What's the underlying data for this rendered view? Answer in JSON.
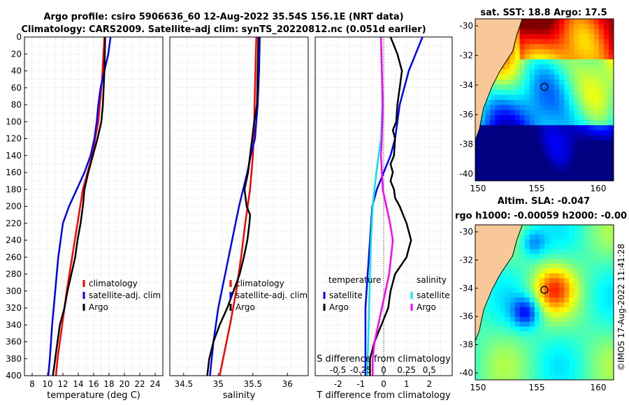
{
  "title": {
    "line1": "Argo profile: csiro 5906636_60 12-Aug-2022 35.54S 156.1E (NRT data)",
    "line2": "Climatology: CARS2009. Satellite-adj clim: synTS_20220812.nc (0.051d earlier)"
  },
  "colors": {
    "climatology": "#ff0000",
    "satellite": "#0000ff",
    "argo": "#000000",
    "sal_satellite": "#00e5ee",
    "sal_argo": "#ff00ff",
    "land": "#f8c898"
  },
  "chart_data": [
    {
      "id": "temperature",
      "type": "line",
      "xlabel": "temperature (deg C)",
      "ylabel": "",
      "xlim": [
        7,
        25
      ],
      "ylim": [
        400,
        0
      ],
      "xticks": [
        "8",
        "10",
        "12",
        "14",
        "16",
        "18",
        "20",
        "22",
        "24"
      ],
      "yticks": [
        "0",
        "20",
        "40",
        "60",
        "80",
        "100",
        "120",
        "140",
        "160",
        "180",
        "200",
        "220",
        "240",
        "260",
        "280",
        "300",
        "320",
        "340",
        "360",
        "380",
        "400"
      ],
      "legend": [
        "climatology",
        "satellite-adj. clim",
        "Argo"
      ],
      "series": [
        {
          "name": "climatology",
          "depth": [
            0,
            50,
            100,
            140,
            180,
            220,
            260,
            300,
            340,
            380,
            400
          ],
          "values": [
            17.4,
            17.1,
            16.6,
            15.8,
            14.6,
            13.9,
            13.2,
            12.5,
            11.9,
            11.3,
            11.1
          ]
        },
        {
          "name": "satellite-adj. clim",
          "depth": [
            0,
            20,
            40,
            60,
            80,
            100,
            120,
            140,
            160,
            180,
            200,
            220,
            260,
            300,
            340,
            380,
            400
          ],
          "values": [
            18.2,
            17.9,
            17.4,
            16.9,
            16.6,
            16.4,
            16.1,
            15.6,
            14.8,
            13.8,
            12.8,
            12.0,
            11.4,
            11.0,
            10.6,
            10.3,
            10.1
          ]
        },
        {
          "name": "Argo",
          "depth": [
            0,
            40,
            80,
            100,
            120,
            140,
            160,
            180,
            200,
            220,
            240,
            260,
            280,
            300,
            320,
            340,
            360,
            380,
            400
          ],
          "values": [
            17.5,
            17.4,
            17.2,
            17.0,
            16.5,
            15.9,
            15.3,
            14.8,
            14.6,
            14.3,
            13.9,
            13.6,
            13.1,
            12.6,
            12.2,
            11.6,
            11.3,
            11.0,
            10.7
          ]
        }
      ]
    },
    {
      "id": "salinity",
      "type": "line",
      "xlabel": "salinity",
      "ylabel": "",
      "xlim": [
        34.3,
        36.3
      ],
      "ylim": [
        400,
        0
      ],
      "xticks": [
        "34.5",
        "35",
        "35.5",
        "36"
      ],
      "legend": [
        "climatology",
        "satellite-adj. clim",
        "Argo"
      ],
      "series": [
        {
          "name": "climatology",
          "depth": [
            0,
            60,
            100,
            140,
            180,
            220,
            260,
            300,
            340,
            380,
            400
          ],
          "values": [
            35.55,
            35.53,
            35.52,
            35.5,
            35.46,
            35.39,
            35.33,
            35.26,
            35.17,
            35.07,
            35.02
          ]
        },
        {
          "name": "satellite-adj. clim",
          "depth": [
            0,
            40,
            80,
            120,
            140,
            160,
            180,
            200,
            240,
            280,
            320,
            360,
            400
          ],
          "values": [
            35.6,
            35.59,
            35.57,
            35.53,
            35.47,
            35.42,
            35.36,
            35.3,
            35.2,
            35.1,
            35.0,
            34.93,
            34.88
          ]
        },
        {
          "name": "Argo",
          "depth": [
            0,
            40,
            80,
            100,
            120,
            140,
            160,
            180,
            200,
            210,
            220,
            240,
            260,
            280,
            300,
            320,
            340,
            360,
            380,
            400
          ],
          "values": [
            35.58,
            35.57,
            35.56,
            35.52,
            35.49,
            35.46,
            35.43,
            35.38,
            35.41,
            35.46,
            35.45,
            35.42,
            35.37,
            35.31,
            35.22,
            35.13,
            35.02,
            34.93,
            34.87,
            34.84
          ]
        }
      ]
    },
    {
      "id": "difference",
      "type": "line",
      "xlabel": "T difference from climatology",
      "xlabel_top": "S difference from climatology",
      "xlim": [
        -3,
        3
      ],
      "ylim": [
        400,
        0
      ],
      "xticks": [
        "-2",
        "-1",
        "0",
        "1",
        "2"
      ],
      "xticks_top": [
        "-0.5",
        "-0.25",
        "0",
        "0.25",
        "0.5"
      ],
      "legend_left_title": "temperature",
      "legend_right_title": "salinity",
      "legend_left": [
        "satellite",
        "Argo"
      ],
      "legend_right": [
        "satellite",
        "Argo"
      ],
      "series": [
        {
          "name": "T satellite",
          "depth": [
            0,
            20,
            40,
            60,
            80,
            100,
            120,
            140,
            160,
            180,
            200,
            240,
            280,
            320,
            360,
            400
          ],
          "values": [
            1.7,
            1.4,
            1.1,
            0.9,
            0.7,
            0.6,
            0.5,
            0.3,
            0.0,
            -0.3,
            -0.5,
            -0.6,
            -0.7,
            -0.8,
            -0.8,
            -0.8
          ]
        },
        {
          "name": "T Argo",
          "depth": [
            0,
            20,
            40,
            60,
            80,
            100,
            110,
            120,
            140,
            150,
            160,
            170,
            180,
            190,
            200,
            220,
            240,
            250,
            260,
            280,
            300,
            320,
            340,
            360,
            380,
            400
          ],
          "values": [
            0.3,
            0.6,
            0.8,
            0.7,
            0.6,
            0.55,
            0.4,
            0.5,
            0.45,
            0.3,
            0.4,
            0.3,
            0.45,
            0.5,
            0.7,
            1.0,
            1.2,
            1.1,
            1.0,
            0.5,
            0.3,
            0.2,
            -0.1,
            -0.4,
            -0.6,
            -0.6
          ]
        },
        {
          "name": "S satellite",
          "depth": [
            0,
            40,
            80,
            120,
            160,
            200,
            240,
            280,
            320,
            360,
            400
          ],
          "values": [
            -0.03,
            -0.02,
            -0.015,
            -0.03,
            -0.08,
            -0.12,
            -0.14,
            -0.15,
            -0.16,
            -0.17,
            -0.18
          ]
        },
        {
          "name": "S Argo",
          "depth": [
            0,
            40,
            80,
            120,
            140,
            160,
            180,
            200,
            220,
            240,
            260,
            280,
            300,
            320,
            340,
            360,
            380,
            400
          ],
          "values": [
            -0.03,
            -0.02,
            -0.01,
            -0.02,
            -0.03,
            -0.02,
            -0.01,
            0.03,
            0.07,
            0.1,
            0.08,
            0.06,
            0.02,
            -0.02,
            -0.06,
            -0.1,
            -0.12,
            -0.12
          ]
        }
      ]
    }
  ],
  "maps": [
    {
      "title": "sat. SST: 18.8 Argo: 17.5",
      "title2": "",
      "xticks": [
        "150",
        "155",
        "160"
      ],
      "yticks": [
        "-30",
        "-32",
        "-34",
        "-36",
        "-38",
        "-40"
      ]
    },
    {
      "title": "Altim. SLA: -0.047",
      "title2": "rgo h1000: -0.00059 h2000: -0.00",
      "xticks": [
        "150",
        "155",
        "160"
      ],
      "yticks": [
        "-30",
        "-32",
        "-34",
        "-36",
        "-38",
        "-40"
      ]
    }
  ],
  "credit": "©IMOS 17-Aug-2022 11:41:28"
}
